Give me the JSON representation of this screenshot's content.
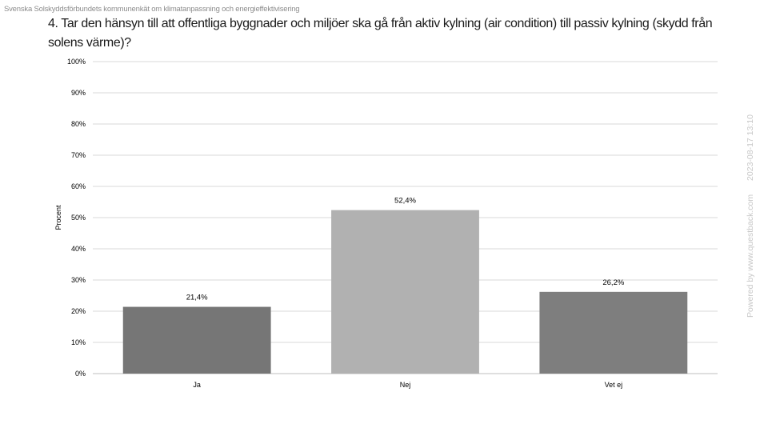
{
  "header": {
    "org_title": "Svenska Solskyddsförbundets kommunenkät om klimatanpassning och energieffektivisering",
    "question": "4. Tar den hänsyn till att offentliga byggnader och miljöer ska gå från aktiv kylning (air condition) till passiv kylning (skydd från solens värme)?"
  },
  "sidebar": {
    "powered_by": "Powered by www.questback.com",
    "timestamp": "2023-08-17 13:10"
  },
  "chart_data": {
    "type": "bar",
    "categories": [
      "Ja",
      "Nej",
      "Vet ej"
    ],
    "values": [
      21.4,
      52.4,
      26.2
    ],
    "data_labels": [
      "21,4%",
      "52,4%",
      "26,2%"
    ],
    "bar_colors": [
      "#767676",
      "#b1b1b1",
      "#7e7e7e"
    ],
    "ylabel": "Procent",
    "ylim": [
      0,
      100
    ],
    "yticks": [
      "0%",
      "10%",
      "20%",
      "30%",
      "40%",
      "50%",
      "60%",
      "70%",
      "80%",
      "90%",
      "100%"
    ],
    "grid": true,
    "legend": "none"
  }
}
